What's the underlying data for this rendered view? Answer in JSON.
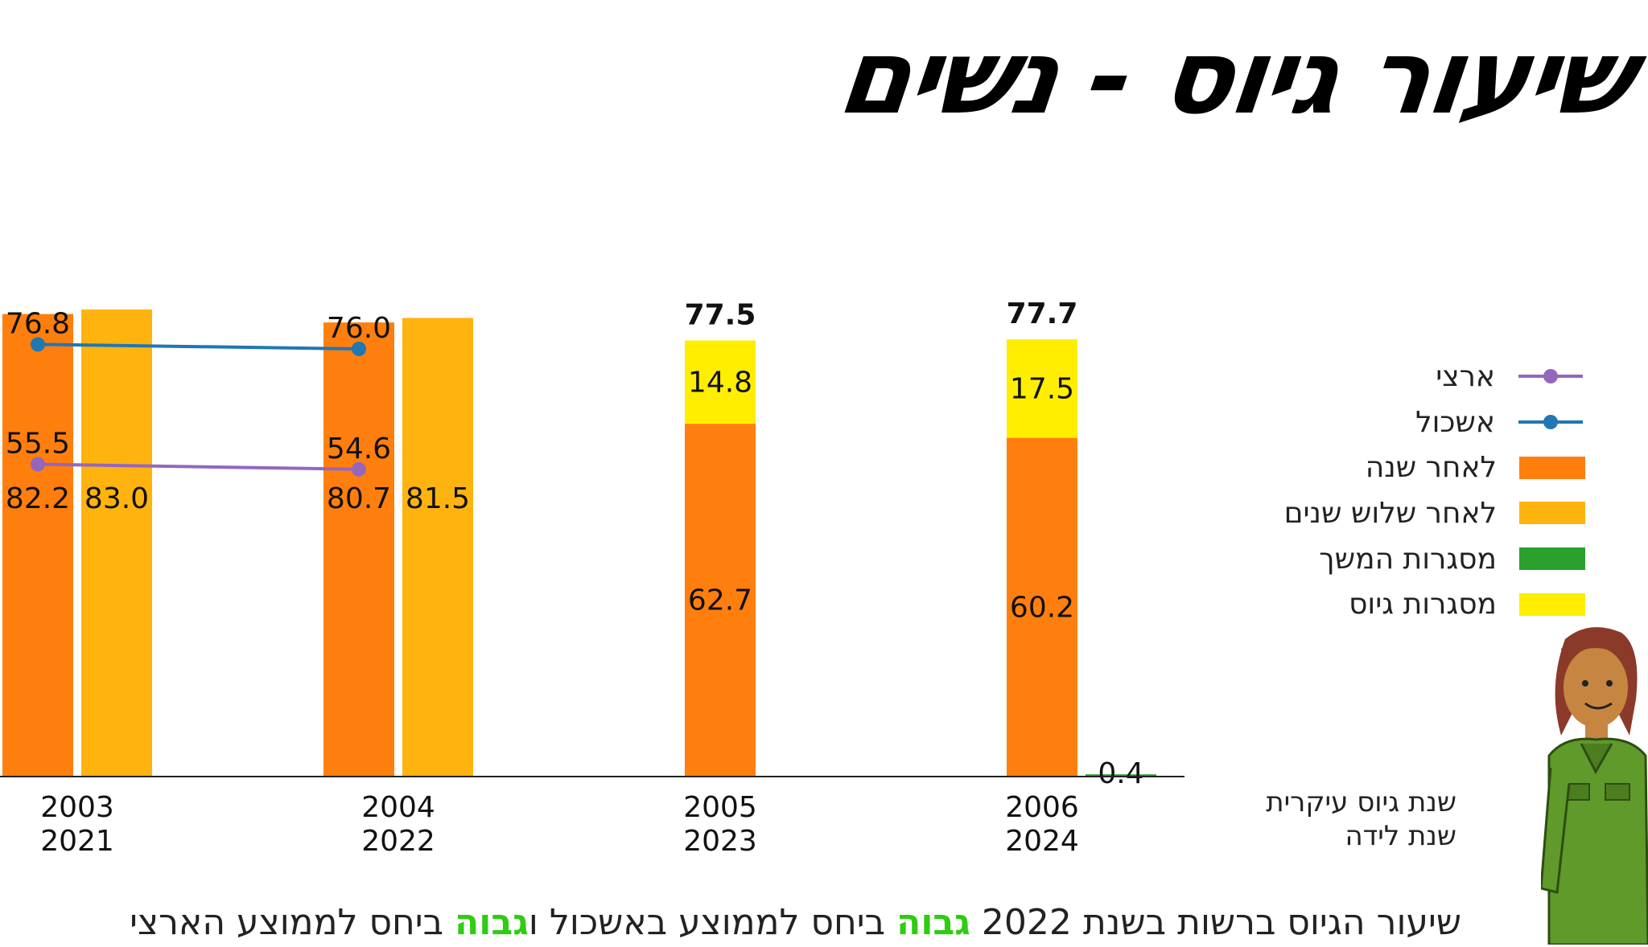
{
  "title": "שיעור גיוס - נשים",
  "chart_data": {
    "type": "bar",
    "groups": [
      {
        "year1": "2003",
        "year2": "2021",
        "after_one_year": 82.2,
        "after_three_years": 83.0,
        "eshkol": 76.8,
        "national": 55.5
      },
      {
        "year1": "2004",
        "year2": "2022",
        "after_one_year": 80.7,
        "after_three_years": 81.5,
        "eshkol": 76.0,
        "national": 54.6
      },
      {
        "year1": "2005",
        "year2": "2023",
        "after_one_year": 62.7,
        "draft_frameworks": 14.8,
        "total": "77.5"
      },
      {
        "year1": "2006",
        "year2": "2024",
        "after_one_year": 60.2,
        "draft_frameworks": 17.5,
        "continuation_frameworks": 0.4,
        "total": "77.7"
      }
    ],
    "series": [
      {
        "name": "ארצי",
        "kind": "line",
        "color": "#9467bd"
      },
      {
        "name": "אשכול",
        "kind": "line",
        "color": "#1f77b4"
      },
      {
        "name": "לאחר שנה",
        "kind": "bar",
        "color": "#ff7f0e"
      },
      {
        "name": "לאחר שלוש שנים",
        "kind": "bar",
        "color": "#ffb30f"
      },
      {
        "name": "מסגרות המשך",
        "kind": "bar",
        "color": "#2ca02c"
      },
      {
        "name": "מסגרות גיוס",
        "kind": "bar",
        "color": "#ffee00"
      }
    ],
    "xlabel_lines": [
      "שנת גיוס עיקרית",
      "שנת לידה"
    ],
    "ylim": [
      0,
      100
    ],
    "grid": false,
    "legend_position": "right"
  },
  "note": {
    "part1": "שיעור הגיוס ברשות בשנת 2022",
    "hl1": "גבוה",
    "part2": "ביחס לממוצע באשכול ו",
    "hl2": "גבוה",
    "part3": "ביחס לממוצע הארצי"
  },
  "mascot_icon": "female-soldier-character"
}
